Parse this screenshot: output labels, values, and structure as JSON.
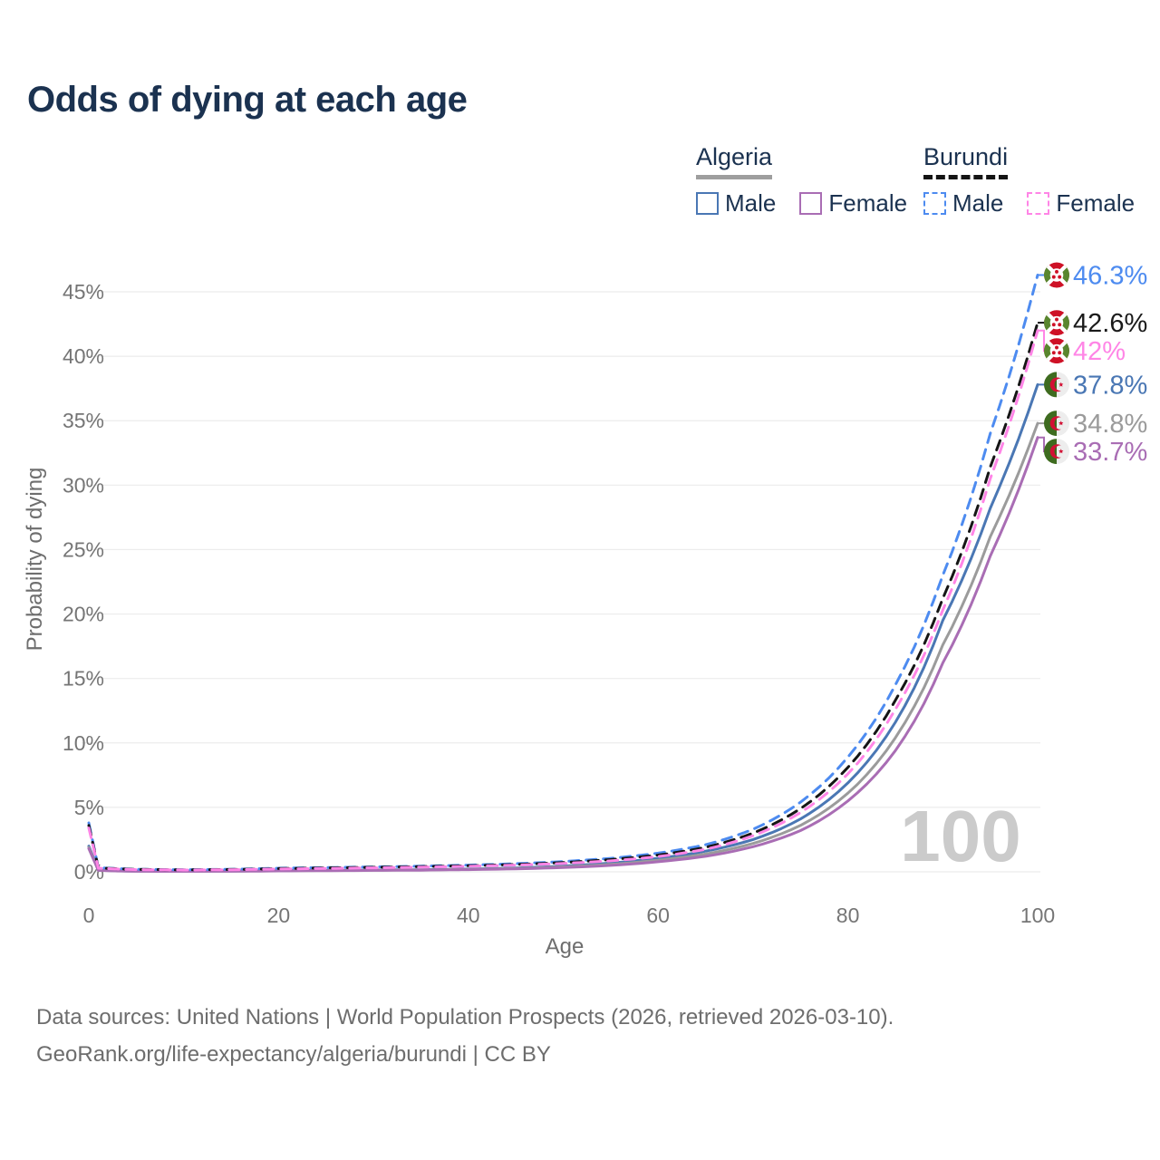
{
  "title": "Odds of dying at each age",
  "legend": {
    "groups": [
      {
        "name": "Algeria",
        "line_style": "solid",
        "underline_color": "#9e9e9e",
        "items": [
          {
            "label": "Male",
            "series": "algeria_male"
          },
          {
            "label": "Female",
            "series": "algeria_female"
          }
        ]
      },
      {
        "name": "Burundi",
        "line_style": "dashed",
        "underline_color": "#141414",
        "items": [
          {
            "label": "Male",
            "series": "burundi_male"
          },
          {
            "label": "Female",
            "series": "burundi_female"
          }
        ]
      }
    ]
  },
  "footer": {
    "line1": "Data sources: United Nations | World Population Prospects (2026, retrieved 2026-03-10).",
    "line2": "GeoRank.org/life-expectancy/algeria/burundi | CC BY"
  },
  "chart_data": {
    "type": "line",
    "title": "Odds of dying at each age",
    "xlabel": "Age",
    "ylabel": "Probability of dying",
    "x_ticks": [
      0,
      20,
      40,
      60,
      80,
      100
    ],
    "y_ticks": [
      0,
      5,
      10,
      15,
      20,
      25,
      30,
      35,
      40,
      45
    ],
    "xlim": [
      0,
      100
    ],
    "ylim": [
      0,
      46.8
    ],
    "grid": "horizontal",
    "age_watermark": "100",
    "colors": {
      "algeria_male": "#4a77b4",
      "algeria_total": "#9b9b9b",
      "algeria_female": "#a96db4",
      "burundi_male": "#4d8bf0",
      "burundi_total": "#151515",
      "burundi_female": "#ff85e6"
    },
    "series": [
      {
        "id": "algeria_male",
        "country": "Algeria",
        "flag": "algeria",
        "color": "#4a77b4",
        "label_color": "#4a77b4",
        "dash": false,
        "end_label": "37.8%",
        "end_value": 37.8,
        "samples": [
          [
            0,
            2.0
          ],
          [
            1,
            0.13
          ],
          [
            5,
            0.05
          ],
          [
            10,
            0.04
          ],
          [
            15,
            0.06
          ],
          [
            20,
            0.1
          ],
          [
            25,
            0.12
          ],
          [
            30,
            0.14
          ],
          [
            35,
            0.17
          ],
          [
            40,
            0.22
          ],
          [
            45,
            0.3
          ],
          [
            50,
            0.45
          ],
          [
            55,
            0.68
          ],
          [
            60,
            1.05
          ],
          [
            65,
            1.6
          ],
          [
            70,
            2.5
          ],
          [
            75,
            4.1
          ],
          [
            80,
            6.9
          ],
          [
            85,
            11.6
          ],
          [
            90,
            19.5
          ],
          [
            95,
            28.2
          ],
          [
            100,
            37.8
          ]
        ]
      },
      {
        "id": "algeria_total",
        "country": "Algeria",
        "flag": "algeria",
        "color": "#9b9b9b",
        "label_color": "#9b9b9b",
        "dash": false,
        "end_label": "34.8%",
        "end_value": 34.8,
        "samples": [
          [
            0,
            1.9
          ],
          [
            1,
            0.12
          ],
          [
            5,
            0.05
          ],
          [
            10,
            0.04
          ],
          [
            15,
            0.05
          ],
          [
            20,
            0.08
          ],
          [
            25,
            0.1
          ],
          [
            30,
            0.12
          ],
          [
            35,
            0.15
          ],
          [
            40,
            0.19
          ],
          [
            45,
            0.26
          ],
          [
            50,
            0.39
          ],
          [
            55,
            0.58
          ],
          [
            60,
            0.9
          ],
          [
            65,
            1.38
          ],
          [
            70,
            2.2
          ],
          [
            75,
            3.6
          ],
          [
            80,
            6.1
          ],
          [
            85,
            10.4
          ],
          [
            90,
            17.6
          ],
          [
            95,
            26.0
          ],
          [
            100,
            34.8
          ]
        ]
      },
      {
        "id": "algeria_female",
        "country": "Algeria",
        "flag": "algeria",
        "color": "#a96db4",
        "label_color": "#a96db4",
        "dash": false,
        "end_label": "33.7%",
        "end_value": 33.7,
        "samples": [
          [
            0,
            1.8
          ],
          [
            1,
            0.11
          ],
          [
            5,
            0.04
          ],
          [
            10,
            0.035
          ],
          [
            15,
            0.045
          ],
          [
            20,
            0.07
          ],
          [
            25,
            0.09
          ],
          [
            30,
            0.11
          ],
          [
            35,
            0.13
          ],
          [
            40,
            0.17
          ],
          [
            45,
            0.23
          ],
          [
            50,
            0.33
          ],
          [
            55,
            0.5
          ],
          [
            60,
            0.78
          ],
          [
            65,
            1.2
          ],
          [
            70,
            1.95
          ],
          [
            75,
            3.2
          ],
          [
            80,
            5.5
          ],
          [
            85,
            9.4
          ],
          [
            90,
            16.2
          ],
          [
            95,
            24.5
          ],
          [
            100,
            33.7
          ]
        ]
      },
      {
        "id": "burundi_male",
        "country": "Burundi",
        "flag": "burundi",
        "color": "#4d8bf0",
        "label_color": "#4d8bf0",
        "dash": true,
        "end_label": "46.3%",
        "end_value": 46.3,
        "samples": [
          [
            0,
            3.8
          ],
          [
            1,
            0.32
          ],
          [
            5,
            0.2
          ],
          [
            10,
            0.16
          ],
          [
            15,
            0.2
          ],
          [
            20,
            0.28
          ],
          [
            25,
            0.33
          ],
          [
            30,
            0.38
          ],
          [
            35,
            0.44
          ],
          [
            40,
            0.52
          ],
          [
            45,
            0.63
          ],
          [
            50,
            0.8
          ],
          [
            55,
            1.05
          ],
          [
            60,
            1.45
          ],
          [
            65,
            2.1
          ],
          [
            70,
            3.3
          ],
          [
            75,
            5.4
          ],
          [
            80,
            8.9
          ],
          [
            85,
            14.5
          ],
          [
            90,
            23.0
          ],
          [
            95,
            34.0
          ],
          [
            100,
            46.3
          ]
        ]
      },
      {
        "id": "burundi_total",
        "country": "Burundi",
        "flag": "burundi",
        "color": "#151515",
        "label_color": "#1a1a1a",
        "dash": true,
        "end_label": "42.6%",
        "end_value": 42.6,
        "samples": [
          [
            0,
            3.6
          ],
          [
            1,
            0.3
          ],
          [
            5,
            0.19
          ],
          [
            10,
            0.15
          ],
          [
            15,
            0.18
          ],
          [
            20,
            0.25
          ],
          [
            25,
            0.3
          ],
          [
            30,
            0.35
          ],
          [
            35,
            0.4
          ],
          [
            40,
            0.47
          ],
          [
            45,
            0.57
          ],
          [
            50,
            0.72
          ],
          [
            55,
            0.95
          ],
          [
            60,
            1.3
          ],
          [
            65,
            1.9
          ],
          [
            70,
            3.0
          ],
          [
            75,
            4.9
          ],
          [
            80,
            8.1
          ],
          [
            85,
            13.3
          ],
          [
            90,
            21.2
          ],
          [
            95,
            31.4
          ],
          [
            100,
            42.6
          ]
        ]
      },
      {
        "id": "burundi_female",
        "country": "Burundi",
        "flag": "burundi",
        "color": "#ff85e6",
        "label_color": "#ff85e6",
        "dash": true,
        "end_label": "42%",
        "end_value": 42.0,
        "samples": [
          [
            0,
            3.4
          ],
          [
            1,
            0.28
          ],
          [
            5,
            0.17
          ],
          [
            10,
            0.14
          ],
          [
            15,
            0.16
          ],
          [
            20,
            0.22
          ],
          [
            25,
            0.26
          ],
          [
            30,
            0.31
          ],
          [
            35,
            0.36
          ],
          [
            40,
            0.43
          ],
          [
            45,
            0.52
          ],
          [
            50,
            0.65
          ],
          [
            55,
            0.85
          ],
          [
            60,
            1.18
          ],
          [
            65,
            1.75
          ],
          [
            70,
            2.8
          ],
          [
            75,
            4.6
          ],
          [
            80,
            7.6
          ],
          [
            85,
            12.6
          ],
          [
            90,
            20.3
          ],
          [
            95,
            30.5
          ],
          [
            100,
            42.0
          ]
        ]
      }
    ]
  }
}
